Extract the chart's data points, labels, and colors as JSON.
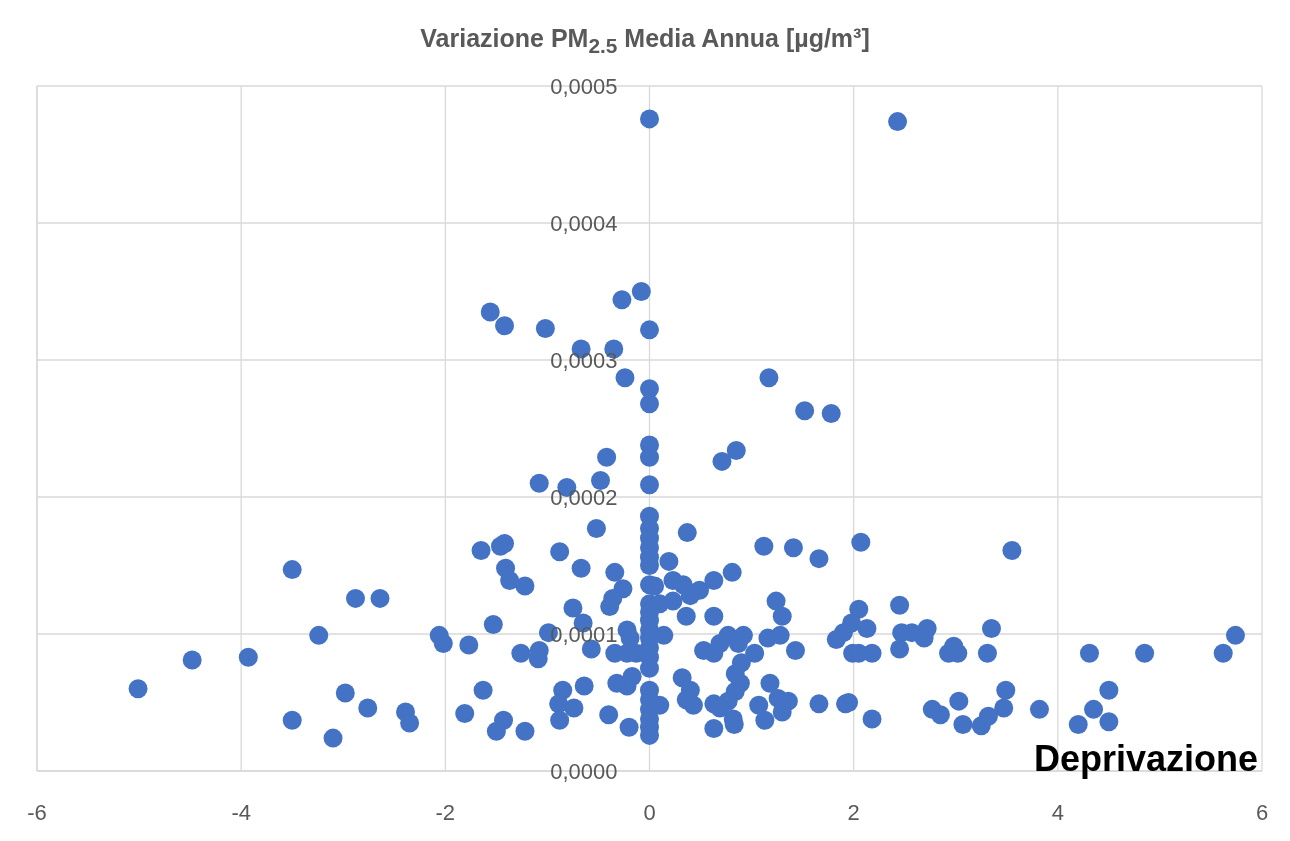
{
  "chart_data": {
    "type": "scatter",
    "title": "Variazione PM$_{2.5}$ Media Annua [µg/m³]",
    "xlabel": "Deprivazione",
    "x": [
      0,
      2.43,
      -0.08,
      -0.27,
      -1.56,
      -1.42,
      -1.02,
      0,
      -0.67,
      -0.35,
      -0.24,
      0,
      0,
      1.17,
      1.52,
      1.78,
      0,
      0,
      -0.42,
      0.71,
      0.85,
      -1.08,
      -0.81,
      -0.48,
      0,
      0,
      0,
      0,
      0,
      0,
      0,
      0,
      0,
      0,
      0,
      0,
      0,
      0,
      0,
      0,
      0,
      0,
      0,
      0,
      0,
      0,
      -0.52,
      0.37,
      -1.65,
      -1.46,
      -1.42,
      -0.88,
      1.12,
      1.41,
      1.66,
      -1.41,
      -0.67,
      0.19,
      -0.34,
      0.81,
      -1.37,
      -1.22,
      -0.26,
      -0.36,
      -0.39,
      0.23,
      0.33,
      0.05,
      0.49,
      0.63,
      0.4,
      0.23,
      0.1,
      1.24,
      1.3,
      -0.75,
      -1.53,
      0.36,
      0.63,
      -0.65,
      -0.22,
      -0.99,
      -1.77,
      -1.26,
      -1.08,
      -1.09,
      -0.57,
      -0.34,
      -0.22,
      -0.19,
      -0.13,
      0.14,
      0.53,
      0.63,
      0.69,
      0.77,
      0.87,
      0.92,
      1.03,
      1.16,
      1.28,
      1.43,
      0.9,
      0.84,
      0.89,
      0.84,
      0.77,
      0.32,
      0.4,
      0.36,
      0.43,
      0.1,
      0.63,
      0.63,
      0.82,
      0.83,
      0.69,
      1.18,
      1.07,
      1.13,
      1.26,
      1.36,
      1.3,
      1.66,
      1.92,
      -0.17,
      -0.22,
      -0.32,
      -0.64,
      -0.85,
      -0.89,
      -0.74,
      -0.88,
      -0.4,
      -0.2,
      -1.63,
      -1.81,
      -1.43,
      -1.5,
      -1.22,
      -3.5,
      -2.88,
      -2.64,
      -3.24,
      -2.06,
      -2.02,
      -4.48,
      -3.93,
      -5.01,
      -2.98,
      -2.76,
      -2.39,
      -2.35,
      -3.5,
      -3.1,
      2.07,
      3.55,
      2.05,
      2.45,
      1.98,
      2.13,
      1.9,
      1.83,
      1.99,
      2.05,
      2.18,
      2.47,
      2.57,
      2.72,
      2.69,
      2.45,
      2.93,
      3.02,
      2.98,
      3.35,
      3.31,
      4.31,
      4.85,
      5.62,
      5.74,
      1.95,
      2.18,
      2.77,
      2.85,
      3.03,
      3.07,
      3.25,
      3.32,
      3.47,
      3.49,
      3.82,
      4.2,
      4.35,
      4.5,
      4.5
    ],
    "values": [
      0.000476,
      0.000474,
      0.00035,
      0.000344,
      0.000335,
      0.000325,
      0.000323,
      0.000322,
      0.000308,
      0.000308,
      0.000287,
      0.000279,
      0.000268,
      0.000287,
      0.000263,
      0.000261,
      0.000238,
      0.000229,
      0.000229,
      0.000226,
      0.000234,
      0.00021,
      0.000207,
      0.000212,
      0.000209,
      0.000186,
      0.000177,
      0.00017,
      0.000163,
      0.000156,
      0.00015,
      0.000136,
      0.000122,
      0.000116,
      0.00011,
      0.000103,
      9.7e-05,
      9e-05,
      8.3e-05,
      7.5e-05,
      5.9e-05,
      5.2e-05,
      4.5e-05,
      3.8e-05,
      3.2e-05,
      2.6e-05,
      0.000177,
      0.000174,
      0.000161,
      0.000164,
      0.000166,
      0.00016,
      0.000164,
      0.000163,
      0.000155,
      0.000148,
      0.000148,
      0.000153,
      0.000145,
      0.000145,
      0.000139,
      0.000135,
      0.000133,
      0.000126,
      0.00012,
      0.000139,
      0.000136,
      0.000135,
      0.000132,
      0.000139,
      0.000128,
      0.000124,
      0.000122,
      0.000124,
      0.000113,
      0.000119,
      0.000107,
      0.000113,
      0.000113,
      0.000108,
      0.000103,
      0.000101,
      9.2e-05,
      8.6e-05,
      8.8e-05,
      8.2e-05,
      8.9e-05,
      8.6e-05,
      8.6e-05,
      9.7e-05,
      8.6e-05,
      9.9e-05,
      8.8e-05,
      8.6e-05,
      9.3e-05,
      9.9e-05,
      9.3e-05,
      9.9e-05,
      8.6e-05,
      9.7e-05,
      9.9e-05,
      8.8e-05,
      7.9e-05,
      7.1e-05,
      6.4e-05,
      5.8e-05,
      5.1e-05,
      6.8e-05,
      5.9e-05,
      5.2e-05,
      4.8e-05,
      4.8e-05,
      4.9e-05,
      3.1e-05,
      3.8e-05,
      3.4e-05,
      4.6e-05,
      6.4e-05,
      4.8e-05,
      3.7e-05,
      5.3e-05,
      5.1e-05,
      4.3e-05,
      4.9e-05,
      4.9e-05,
      6.9e-05,
      6.2e-05,
      6.4e-05,
      6.2e-05,
      5.9e-05,
      4.9e-05,
      4.6e-05,
      3.7e-05,
      4.1e-05,
      3.2e-05,
      5.9e-05,
      4.2e-05,
      3.7e-05,
      2.9e-05,
      2.9e-05,
      0.000147,
      0.000126,
      0.000126,
      9.9e-05,
      9.9e-05,
      9.3e-05,
      8.1e-05,
      8.3e-05,
      6e-05,
      5.7e-05,
      4.6e-05,
      4.3e-05,
      3.5e-05,
      3.7e-05,
      2.4e-05,
      0.000167,
      0.000161,
      0.000118,
      0.000121,
      0.000108,
      0.000104,
      0.000101,
      9.6e-05,
      8.6e-05,
      8.6e-05,
      8.6e-05,
      0.000101,
      0.000101,
      0.000104,
      9.7e-05,
      8.9e-05,
      8.6e-05,
      8.6e-05,
      9.1e-05,
      0.000104,
      8.6e-05,
      8.6e-05,
      8.6e-05,
      8.6e-05,
      9.9e-05,
      5e-05,
      3.8e-05,
      4.5e-05,
      4.1e-05,
      5.1e-05,
      3.4e-05,
      3.3e-05,
      4e-05,
      4.6e-05,
      5.9e-05,
      4.5e-05,
      3.4e-05,
      4.5e-05,
      5.9e-05,
      3.6e-05
    ],
    "color": "#4472c4",
    "marker": "circle",
    "xlim": [
      -6,
      6
    ],
    "xticks": [
      -6,
      -4,
      -2,
      0,
      2,
      4,
      6
    ],
    "ylim": [
      0,
      0.0005
    ],
    "yticks": [
      {
        "value": 0,
        "label": "0,0000"
      },
      {
        "value": 0.0001,
        "label": "0,0001"
      },
      {
        "value": 0.0002,
        "label": "0,0002"
      },
      {
        "value": 0.0003,
        "label": "0,0003"
      },
      {
        "value": 0.0004,
        "label": "0,0004"
      },
      {
        "value": 0.0005,
        "label": "0,0005"
      }
    ],
    "grid": true
  }
}
